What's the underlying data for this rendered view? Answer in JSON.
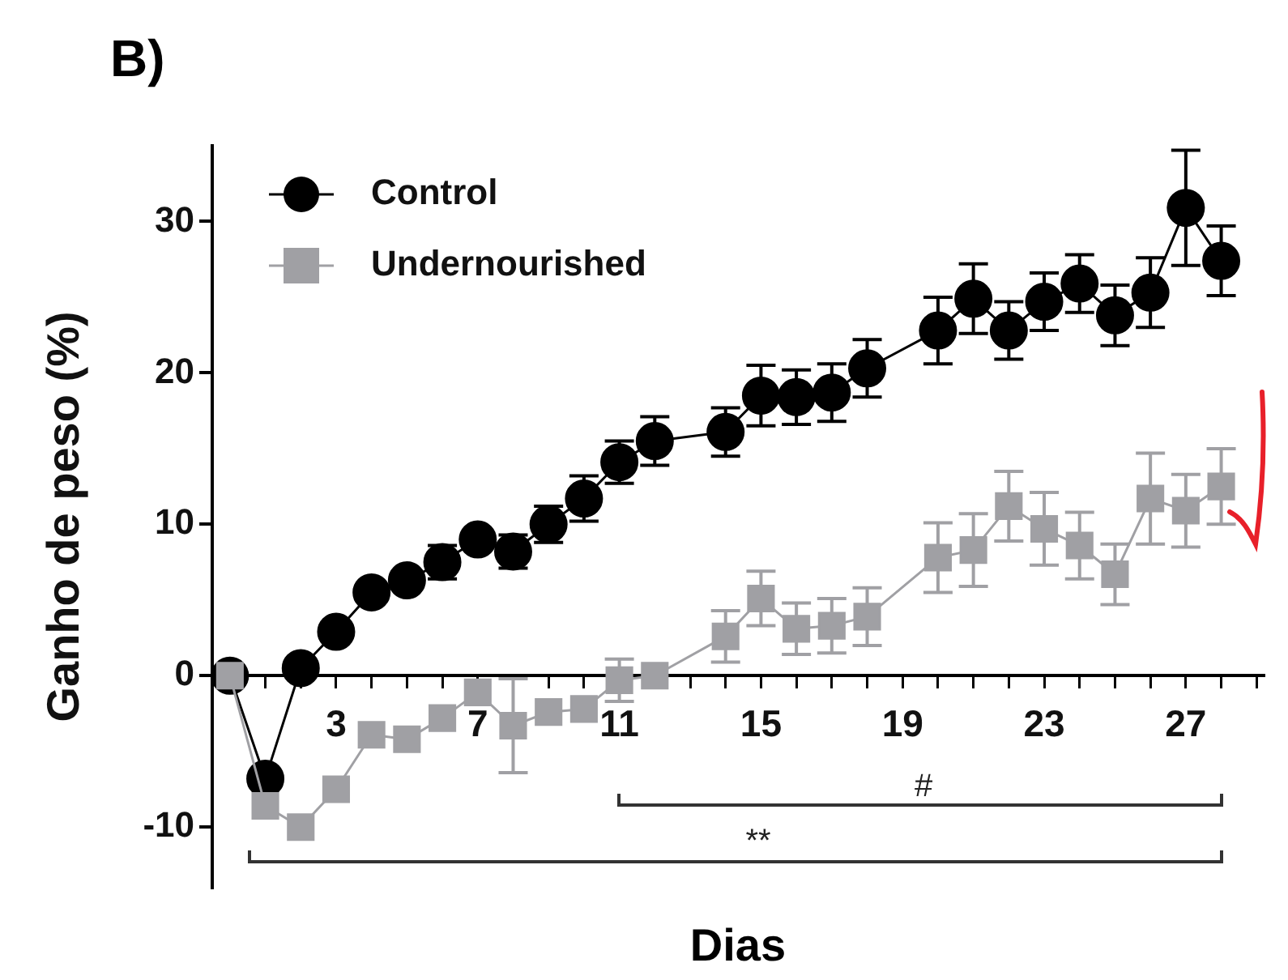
{
  "chart_data": {
    "type": "line",
    "title": "B)",
    "xlabel": "Dias",
    "ylabel": "Ganho de peso (%)",
    "xlim": [
      -0.5,
      29.2
    ],
    "ylim": [
      -14,
      35
    ],
    "xticks": [
      {
        "value": 0,
        "label": null
      },
      {
        "value": 1,
        "label": null
      },
      {
        "value": 2,
        "label": null
      },
      3,
      {
        "value": 4,
        "label": null
      },
      {
        "value": 5,
        "label": null
      },
      {
        "value": 6,
        "label": null
      },
      7,
      {
        "value": 8,
        "label": null
      },
      {
        "value": 9,
        "label": null
      },
      {
        "value": 10,
        "label": null
      },
      11,
      {
        "value": 12,
        "label": null
      },
      {
        "value": 13,
        "label": null
      },
      {
        "value": 14,
        "label": null
      },
      15,
      {
        "value": 16,
        "label": null
      },
      {
        "value": 17,
        "label": null
      },
      {
        "value": 18,
        "label": null
      },
      19,
      {
        "value": 20,
        "label": null
      },
      {
        "value": 21,
        "label": null
      },
      {
        "value": 22,
        "label": null
      },
      23,
      {
        "value": 24,
        "label": null
      },
      {
        "value": 25,
        "label": null
      },
      {
        "value": 26,
        "label": null
      },
      27,
      {
        "value": 28,
        "label": null
      },
      {
        "value": 29,
        "label": null
      }
    ],
    "yticks": [
      -10,
      0,
      10,
      20,
      30
    ],
    "grid": false,
    "legend": "top left",
    "line_style": "solid",
    "series": [
      {
        "name": "Control",
        "color": "#000000",
        "marker": "circle",
        "x": [
          0,
          1,
          2,
          3,
          4,
          5,
          6,
          7,
          8,
          9,
          10,
          11,
          12,
          14,
          15,
          16,
          17,
          18,
          20,
          21,
          22,
          23,
          24,
          25,
          26,
          27,
          28
        ],
        "values": [
          0,
          -6.8,
          0.5,
          2.9,
          5.5,
          6.3,
          7.5,
          9.0,
          8.2,
          10.0,
          11.7,
          14.1,
          15.5,
          16.1,
          18.5,
          18.4,
          18.7,
          20.3,
          22.8,
          24.9,
          22.8,
          24.7,
          25.9,
          23.8,
          25.3,
          30.9,
          27.4
        ],
        "errors": [
          null,
          null,
          null,
          null,
          null,
          null,
          1.1,
          null,
          1.1,
          1.2,
          1.5,
          1.4,
          1.6,
          1.6,
          2.0,
          1.8,
          1.9,
          1.9,
          2.2,
          2.3,
          1.9,
          1.9,
          1.9,
          2.0,
          2.3,
          3.8,
          2.3
        ]
      },
      {
        "name": "Undernourished",
        "color": "#a0a0a4",
        "marker": "square",
        "x": [
          0,
          1,
          2,
          3,
          4,
          5,
          6,
          7,
          8,
          9,
          10,
          11,
          12,
          14,
          15,
          16,
          17,
          18,
          20,
          21,
          22,
          23,
          24,
          25,
          26,
          27,
          28
        ],
        "values": [
          0,
          -8.6,
          -10.0,
          -7.5,
          -3.9,
          -4.2,
          -2.8,
          -1.1,
          -3.3,
          -2.4,
          -2.2,
          -0.3,
          0.0,
          2.6,
          5.1,
          3.1,
          3.3,
          3.9,
          7.8,
          8.3,
          11.2,
          9.7,
          8.6,
          6.7,
          11.7,
          10.9,
          12.5
        ],
        "errors": [
          null,
          null,
          null,
          null,
          null,
          null,
          null,
          null,
          3.1,
          null,
          null,
          1.4,
          null,
          1.7,
          1.8,
          1.7,
          1.8,
          1.9,
          2.3,
          2.4,
          2.3,
          2.4,
          2.2,
          2.0,
          3.0,
          2.4,
          2.5
        ]
      }
    ],
    "annotations": [
      "#",
      "**"
    ]
  }
}
